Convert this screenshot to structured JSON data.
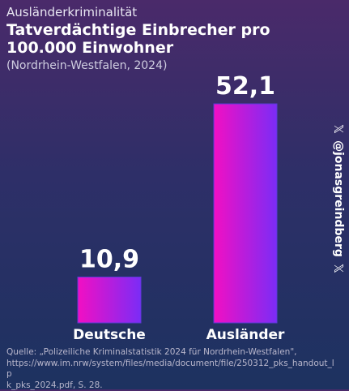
{
  "header": {
    "kicker": "Ausländerkriminalität",
    "title_line1": "Tatverdächtige Einbrecher pro",
    "title_line2": "100.000 Einwohner",
    "subtitle": "(Nordrhein-Westfalen, 2024)"
  },
  "handle": {
    "text": "@jonasgreindberg",
    "icon": "x-logo-icon"
  },
  "source": {
    "line1": "Quelle: „Polizeiliche Kriminalstatistik 2024 für Nordrhein-Westfalen\",",
    "line2": "https://www.im.nrw/system/files/media/document/file/250312_pks_handout_lp",
    "line3": "k_pks_2024.pdf, S. 28."
  },
  "colors": {
    "bar_top": "#f20fc3",
    "bar_bottom": "#8e1bf5",
    "bar_right": "#7b2cf6"
  },
  "chart_data": {
    "type": "bar",
    "categories": [
      "Deutsche",
      "Ausländer"
    ],
    "values": [
      10.9,
      52.1
    ],
    "value_labels": [
      "10,9",
      "52,1"
    ],
    "title": "Tatverdächtige Einbrecher pro 100.000 Einwohner",
    "xlabel": "",
    "ylabel": "",
    "ylim": [
      0,
      52.1
    ],
    "grid": false
  }
}
